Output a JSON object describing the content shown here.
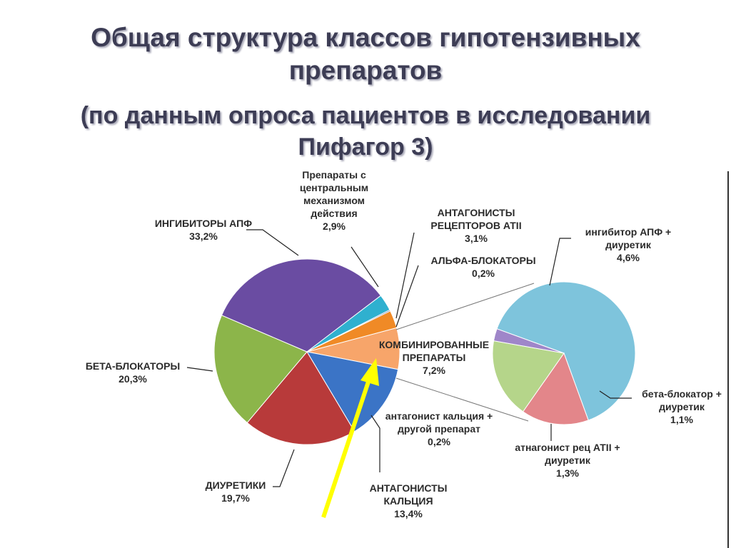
{
  "title_lines": [
    "Общая структура классов гипотензивных",
    "препаратов"
  ],
  "subtitle_lines": [
    "(по данным опроса пациентов в исследовании",
    "Пифагор 3)"
  ],
  "chart_data": [
    {
      "type": "pie",
      "slices": [
        {
          "name": "КОМБИНИРОВАННЫЕ ПРЕПАРАТЫ",
          "value": 7.2,
          "label": "7,2%",
          "color": "#f7a56a"
        },
        {
          "name": "АНТАГОНИСТЫ КАЛЬЦИЯ",
          "value": 13.4,
          "label": "13,4%",
          "color": "#3b74c6"
        },
        {
          "name": "ДИУРЕТИКИ",
          "value": 19.7,
          "label": "19,7%",
          "color": "#b83a3a"
        },
        {
          "name": "БЕТА-БЛОКАТОРЫ",
          "value": 20.3,
          "label": "20,3%",
          "color": "#8cb54a"
        },
        {
          "name": "ИНГИБИТОРЫ АПФ",
          "value": 33.2,
          "label": "33,2%",
          "color": "#6a4ca2"
        },
        {
          "name": "Препараты с центральным механизмом действия",
          "value": 2.9,
          "label": "2,9%",
          "color": "#2fb0cf"
        },
        {
          "name": "АЛЬФА-БЛОКАТОРЫ",
          "value": 0.2,
          "label": "0,2%",
          "color": "#3a5a9e"
        },
        {
          "name": "АНТАГОНИСТЫ РЕЦЕПТОРОВ АТII",
          "value": 3.1,
          "label": "3,1%",
          "color": "#f08a26"
        }
      ]
    },
    {
      "type": "pie",
      "slices": [
        {
          "name": "ингибитор АПФ + диуретик",
          "value": 4.6,
          "label": "4,6%",
          "color": "#7ec4dc"
        },
        {
          "name": "бета-блокатор + диуретик",
          "value": 1.1,
          "label": "1,1%",
          "color": "#e3868a"
        },
        {
          "name": "атнагонист рец АТII + диуретик",
          "value": 1.3,
          "label": "1,3%",
          "color": "#b5d58a"
        },
        {
          "name": "антагонист кальция + другой препарат",
          "value": 0.2,
          "label": "0,2%",
          "color": "#9f86c9"
        }
      ]
    }
  ],
  "labels": {
    "ace": [
      "ИНГИБИТОРЫ АПФ",
      "33,2%"
    ],
    "central": [
      "Препараты с",
      "центральным",
      "механизмом",
      "действия",
      "2,9%"
    ],
    "arb": [
      "АНТАГОНИСТЫ",
      "РЕЦЕПТОРОВ АТII",
      "3,1%"
    ],
    "alpha": [
      "АЛЬФА-БЛОКАТОРЫ",
      "0,2%"
    ],
    "beta": [
      "БЕТА-БЛОКАТОРЫ",
      "20,3%"
    ],
    "combined": [
      "КОМБИНИРОВАННЫЕ",
      "ПРЕПАРАТЫ",
      "7,2%"
    ],
    "diuretics": [
      "ДИУРЕТИКИ",
      "19,7%"
    ],
    "calcium": [
      "АНТАГОНИСТЫ",
      "КАЛЬЦИЯ",
      "13,4%"
    ],
    "ca_other": [
      "антагонист кальция +",
      "другой препарат",
      "0,2%"
    ],
    "ace_diur": [
      "ингибитор АПФ +",
      "диуретик",
      "4,6%"
    ],
    "beta_diur": [
      "бета-блокатор +",
      "диуретик",
      "1,1%"
    ],
    "arb_diur": [
      "атнагонист рец АТII +",
      "диуретик",
      "1,3%"
    ]
  },
  "arrow_color": "#ffff00"
}
